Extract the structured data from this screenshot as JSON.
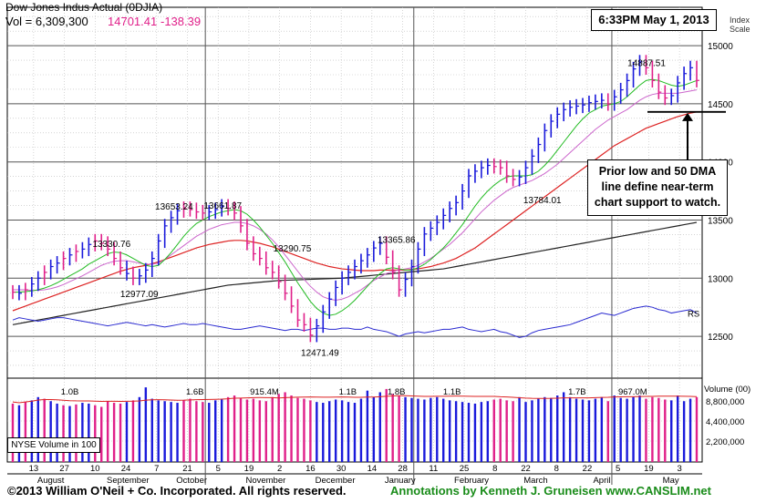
{
  "header": {
    "title": "Dow Jones Indus Actual  (0DJIA)",
    "volume_text": "Vol = 6,309,300",
    "price": "14701.41",
    "change": "-138.39",
    "timestamp": "6:33PM May 1, 2013",
    "index_scale_line1": "Index",
    "index_scale_line2": "Scale"
  },
  "annotation": {
    "line1": "Prior low and 50 DMA",
    "line2": "line define near-term",
    "line3": "chart support to watch."
  },
  "footer": {
    "copyright": "©2013 William O'Neil + Co. Incorporated. All rights reserved.",
    "annotations_credit": "Annotations by Kenneth J. Gruneisen www.CANSLIM.net"
  },
  "colors": {
    "price_bar": "#1a1adb",
    "price_up": "#e0208a",
    "ma_10": "#22bb22",
    "ma_21": "#cc66cc",
    "ma_50": "#dd2222",
    "ma_200": "#222222",
    "rs_line": "#2a2ad0",
    "volume_avg": "#dd2222",
    "grid": "#888888"
  },
  "chart_data": {
    "type": "line",
    "title": "Dow Jones Indus Actual  (0DJIA)",
    "y_axis": {
      "label": "Index Scale",
      "ticks": [
        12500,
        13000,
        13500,
        14000,
        14500,
        15000
      ],
      "ylim": [
        12140,
        15330
      ]
    },
    "volume_axis": {
      "label": "Volume (00)",
      "ticks": [
        "8,800,000",
        "4,400,000",
        "2,200,000"
      ],
      "tick_values": [
        8800000,
        4400000,
        2200000
      ]
    },
    "x_axis": {
      "day_labels": [
        "13",
        "27",
        "10",
        "24",
        "7",
        "21",
        "5",
        "19",
        "2",
        "16",
        "30",
        "14",
        "28",
        "11",
        "25",
        "8",
        "22",
        "8",
        "22",
        "5",
        "19",
        "3"
      ],
      "month_labels": [
        "August",
        "September",
        "October",
        "November",
        "December",
        "January",
        "February",
        "March",
        "April",
        "May"
      ]
    },
    "price_points": [
      {
        "label": "13330.76"
      },
      {
        "label": "12977.09"
      },
      {
        "label": "13653.24"
      },
      {
        "label": "13661.87"
      },
      {
        "label": "13290.75"
      },
      {
        "label": "12471.49"
      },
      {
        "label": "13365.86"
      },
      {
        "label": "13784.01"
      },
      {
        "label": "14887.51"
      }
    ],
    "volume_labels": [
      "1.0B",
      "1.6B",
      "915.4M",
      "1.1B",
      "1.8B",
      "1.1B",
      "1.7B",
      "967.0M"
    ],
    "legend": {
      "rs": "RS",
      "nyse_volume": "NYSE Volume in 100"
    },
    "close_series": [
      12880,
      12870,
      12900,
      12950,
      13000,
      13050,
      13100,
      13130,
      13170,
      13200,
      13230,
      13250,
      13290,
      13320,
      13300,
      13250,
      13170,
      13090,
      13040,
      13000,
      13020,
      13070,
      13170,
      13320,
      13450,
      13520,
      13580,
      13600,
      13590,
      13570,
      13560,
      13570,
      13590,
      13620,
      13600,
      13560,
      13450,
      13300,
      13210,
      13170,
      13090,
      13050,
      12970,
      12870,
      12760,
      12640,
      12600,
      12510,
      12590,
      12710,
      12820,
      12920,
      13000,
      13050,
      13100,
      13150,
      13200,
      13260,
      13300,
      13180,
      13050,
      12900,
      12990,
      13100,
      13250,
      13380,
      13430,
      13480,
      13540,
      13600,
      13650,
      13750,
      13880,
      13920,
      13950,
      13970,
      13960,
      13950,
      13880,
      13850,
      13870,
      13950,
      14050,
      14150,
      14270,
      14350,
      14410,
      14450,
      14470,
      14480,
      14490,
      14510,
      14520,
      14530,
      14500,
      14560,
      14620,
      14700,
      14800,
      14860,
      14810,
      14700,
      14600,
      14550,
      14570,
      14680,
      14760,
      14810,
      14701
    ],
    "series_values": {
      "ma_10": [
        12880,
        12880,
        12885,
        12890,
        12900,
        12915,
        12935,
        12960,
        12990,
        13020,
        13050,
        13080,
        13120,
        13150,
        13180,
        13210,
        13225,
        13220,
        13200,
        13170,
        13140,
        13110,
        13100,
        13110,
        13160,
        13220,
        13290,
        13360,
        13420,
        13470,
        13500,
        13530,
        13550,
        13570,
        13580,
        13590,
        13580,
        13550,
        13500,
        13440,
        13370,
        13300,
        13220,
        13140,
        13050,
        12960,
        12880,
        12800,
        12740,
        12700,
        12680,
        12690,
        12720,
        12760,
        12810,
        12870,
        12930,
        12990,
        13040,
        13080,
        13090,
        13080,
        13070,
        13070,
        13090,
        13120,
        13160,
        13210,
        13260,
        13320,
        13390,
        13460,
        13540,
        13620,
        13690,
        13750,
        13800,
        13840,
        13870,
        13880,
        13880,
        13880,
        13890,
        13920,
        13970,
        14030,
        14100,
        14170,
        14240,
        14310,
        14370,
        14420,
        14450,
        14480,
        14490,
        14500,
        14520,
        14560,
        14610,
        14660,
        14700,
        14710,
        14700,
        14680,
        14660,
        14650,
        14660,
        14680,
        14700
      ],
      "ma_21": [
        12900,
        12900,
        12900,
        12895,
        12895,
        12900,
        12910,
        12925,
        12945,
        12970,
        12995,
        13020,
        13050,
        13080,
        13110,
        13130,
        13145,
        13150,
        13150,
        13140,
        13130,
        13120,
        13120,
        13130,
        13160,
        13200,
        13240,
        13280,
        13320,
        13360,
        13390,
        13420,
        13440,
        13460,
        13470,
        13480,
        13480,
        13470,
        13450,
        13420,
        13380,
        13330,
        13270,
        13200,
        13130,
        13060,
        12990,
        12930,
        12880,
        12840,
        12820,
        12810,
        12820,
        12840,
        12870,
        12900,
        12940,
        12980,
        13010,
        13040,
        13060,
        13070,
        13080,
        13090,
        13110,
        13140,
        13170,
        13210,
        13250,
        13290,
        13340,
        13390,
        13450,
        13510,
        13570,
        13620,
        13670,
        13710,
        13750,
        13780,
        13800,
        13820,
        13840,
        13870,
        13900,
        13940,
        13980,
        14030,
        14080,
        14130,
        14180,
        14230,
        14280,
        14320,
        14360,
        14390,
        14420,
        14450,
        14490,
        14530,
        14560,
        14580,
        14590,
        14590,
        14590,
        14590,
        14600,
        14610,
        14620
      ],
      "ma_50": [
        12720,
        12740,
        12760,
        12780,
        12800,
        12820,
        12840,
        12860,
        12880,
        12900,
        12920,
        12940,
        12960,
        12980,
        13000,
        13020,
        13040,
        13060,
        13075,
        13090,
        13100,
        13110,
        13125,
        13140,
        13160,
        13180,
        13200,
        13220,
        13240,
        13260,
        13275,
        13290,
        13300,
        13310,
        13320,
        13325,
        13325,
        13320,
        13310,
        13300,
        13285,
        13270,
        13250,
        13230,
        13210,
        13190,
        13170,
        13150,
        13130,
        13115,
        13100,
        13090,
        13080,
        13075,
        13070,
        13065,
        13065,
        13065,
        13070,
        13070,
        13070,
        13070,
        13070,
        13075,
        13080,
        13090,
        13100,
        13115,
        13130,
        13150,
        13170,
        13200,
        13230,
        13260,
        13300,
        13340,
        13380,
        13420,
        13460,
        13500,
        13540,
        13580,
        13620,
        13660,
        13700,
        13740,
        13780,
        13820,
        13860,
        13900,
        13940,
        13980,
        14020,
        14060,
        14100,
        14140,
        14170,
        14200,
        14230,
        14260,
        14290,
        14310,
        14330,
        14350,
        14370,
        14390,
        14405,
        14420,
        14430
      ],
      "ma_200": [
        12600,
        12610,
        12620,
        12630,
        12640,
        12650,
        12660,
        12670,
        12680,
        12690,
        12700,
        12710,
        12720,
        12730,
        12740,
        12750,
        12760,
        12770,
        12780,
        12790,
        12800,
        12810,
        12820,
        12830,
        12840,
        12850,
        12860,
        12870,
        12880,
        12890,
        12900,
        12910,
        12920,
        12930,
        12940,
        12945,
        12950,
        12955,
        12960,
        12965,
        12970,
        12975,
        12980,
        12982,
        12984,
        12986,
        12988,
        12990,
        12992,
        12994,
        12996,
        12998,
        13000,
        13005,
        13010,
        13015,
        13020,
        13025,
        13030,
        13035,
        13040,
        13045,
        13050,
        13055,
        13060,
        13065,
        13070,
        13075,
        13080,
        13090,
        13100,
        13110,
        13120,
        13130,
        13140,
        13150,
        13160,
        13170,
        13180,
        13190,
        13200,
        13210,
        13220,
        13230,
        13240,
        13250,
        13260,
        13270,
        13280,
        13290,
        13300,
        13310,
        13320,
        13330,
        13340,
        13350,
        13360,
        13370,
        13380,
        13390,
        13400,
        13410,
        13420,
        13430,
        13440,
        13450,
        13460,
        13470,
        13480
      ],
      "rs": [
        12640,
        12660,
        12650,
        12640,
        12630,
        12640,
        12650,
        12660,
        12660,
        12650,
        12640,
        12630,
        12620,
        12610,
        12600,
        12590,
        12600,
        12610,
        12620,
        12610,
        12600,
        12590,
        12600,
        12590,
        12580,
        12590,
        12600,
        12610,
        12600,
        12600,
        12610,
        12600,
        12590,
        12580,
        12570,
        12560,
        12560,
        12570,
        12580,
        12590,
        12580,
        12570,
        12560,
        12550,
        12560,
        12560,
        12550,
        12560,
        12570,
        12570,
        12560,
        12560,
        12570,
        12570,
        12560,
        12560,
        12580,
        12560,
        12550,
        12540,
        12520,
        12500,
        12520,
        12530,
        12540,
        12530,
        12540,
        12550,
        12560,
        12560,
        12570,
        12580,
        12560,
        12550,
        12540,
        12550,
        12560,
        12540,
        12530,
        12510,
        12490,
        12500,
        12530,
        12550,
        12560,
        12570,
        12580,
        12590,
        12600,
        12620,
        12640,
        12660,
        12680,
        12700,
        12690,
        12680,
        12700,
        12720,
        12740,
        12750,
        12760,
        12750,
        12730,
        12720,
        12700,
        12710,
        12720,
        12730,
        12700
      ]
    },
    "volume_series": [
      72,
      70,
      74,
      76,
      80,
      78,
      75,
      72,
      70,
      69,
      71,
      73,
      72,
      70,
      68,
      75,
      73,
      72,
      74,
      76,
      80,
      92,
      78,
      76,
      75,
      74,
      73,
      76,
      78,
      75,
      74,
      73,
      76,
      78,
      80,
      82,
      79,
      77,
      78,
      76,
      75,
      80,
      84,
      86,
      82,
      79,
      78,
      76,
      74,
      73,
      75,
      77,
      76,
      74,
      73,
      78,
      88,
      80,
      86,
      90,
      84,
      82,
      80,
      79,
      78,
      77,
      79,
      80,
      78,
      76,
      75,
      74,
      73,
      72,
      74,
      75,
      77,
      78,
      76,
      75,
      80,
      74,
      76,
      78,
      80,
      79,
      82,
      86,
      80,
      78,
      77,
      76,
      78,
      80,
      75,
      82,
      79,
      78,
      80,
      82,
      78,
      80,
      79,
      77,
      76,
      82,
      75,
      78,
      80
    ],
    "support_level": 14430,
    "price_bar_flags": [
      0,
      1,
      0,
      1,
      1,
      0,
      1,
      1,
      0,
      1,
      0,
      1,
      1,
      0,
      0,
      0,
      0,
      0,
      1,
      0,
      1,
      1,
      1,
      1,
      1,
      1,
      1,
      0,
      0,
      0,
      0,
      1,
      1,
      1,
      0,
      0,
      0,
      0,
      0,
      0,
      0,
      0,
      0,
      0,
      0,
      0,
      0,
      0,
      1,
      1,
      1,
      1,
      1,
      1,
      1,
      1,
      1,
      1,
      1,
      0,
      0,
      0,
      1,
      1,
      1,
      1,
      1,
      1,
      1,
      1,
      1,
      1,
      1,
      1,
      1,
      1,
      0,
      0,
      0,
      0,
      1,
      1,
      1,
      1,
      1,
      1,
      1,
      1,
      1,
      1,
      1,
      1,
      1,
      1,
      0,
      1,
      1,
      1,
      1,
      1,
      0,
      0,
      0,
      0,
      1,
      1,
      1,
      1,
      0
    ]
  }
}
